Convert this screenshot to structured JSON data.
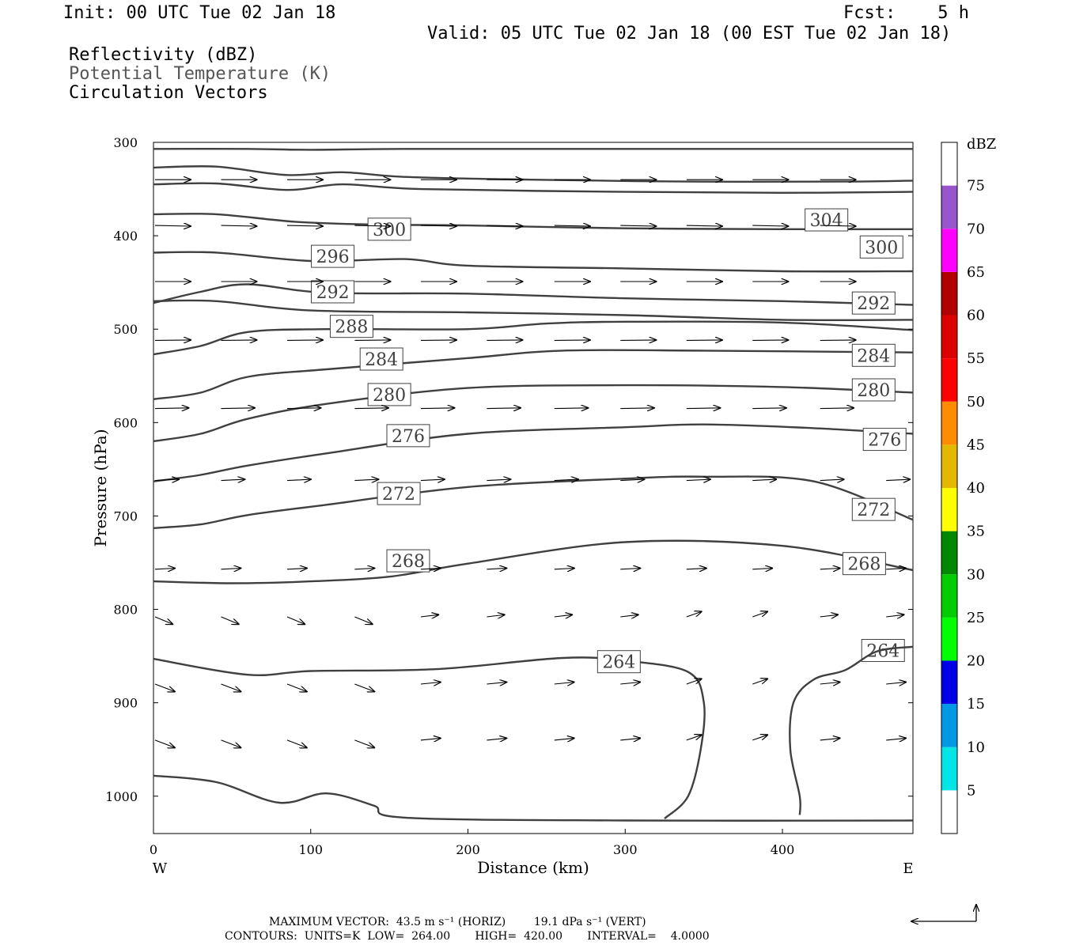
{
  "header": {
    "init": "Init: 00 UTC Tue 02 Jan 18",
    "fcst": "Fcst:    5 h",
    "valid": "Valid: 05 UTC Tue 02 Jan 18 (00 EST Tue 02 Jan 18)",
    "fields": [
      "Reflectivity (dBZ)",
      "Potential Temperature (K)",
      "Circulation Vectors"
    ]
  },
  "footer": {
    "max_vector": "MAXIMUM VECTOR:  43.5 m s⁻¹ (HORIZ)        19.1 dPa s⁻¹ (VERT)",
    "contours": "CONTOURS:  UNITS=K  LOW=  264.00       HIGH=  420.00       INTERVAL=    4.0000"
  },
  "chart_data": {
    "type": "cross-section",
    "xlabel": "Distance (km)",
    "ylabel": "Pressure (hPa)",
    "xlim": [
      0,
      483
    ],
    "ylim": [
      1040,
      300
    ],
    "x_ticks": [
      0,
      100,
      200,
      300,
      400
    ],
    "y_ticks": [
      300,
      400,
      500,
      600,
      700,
      800,
      900,
      1000
    ],
    "x_end_labels": {
      "left": "W",
      "right": "E"
    },
    "colorbar": {
      "title": "dBZ",
      "levels": [
        5,
        10,
        15,
        20,
        25,
        30,
        35,
        40,
        45,
        50,
        55,
        60,
        65,
        70,
        75
      ],
      "colors": [
        "#ffffff",
        "#00e5e5",
        "#0099e5",
        "#0000e6",
        "#00ff00",
        "#00cc00",
        "#008800",
        "#ffff00",
        "#e5b800",
        "#ff8c00",
        "#ff0000",
        "#dd0000",
        "#b00000",
        "#ff00ff",
        "#9955cc",
        "#ffffff"
      ]
    },
    "theta_contours": [
      {
        "label": "",
        "points": [
          [
            0,
            307
          ],
          [
            60,
            307
          ],
          [
            100,
            308
          ],
          [
            160,
            307
          ],
          [
            300,
            307
          ],
          [
            483,
            307
          ]
        ]
      },
      {
        "label": "",
        "points": [
          [
            0,
            327
          ],
          [
            40,
            326
          ],
          [
            85,
            335
          ],
          [
            120,
            332
          ],
          [
            160,
            337
          ],
          [
            240,
            340
          ],
          [
            340,
            342
          ],
          [
            440,
            342
          ],
          [
            483,
            341
          ]
        ]
      },
      {
        "label": "",
        "points": [
          [
            0,
            345
          ],
          [
            40,
            344
          ],
          [
            85,
            351
          ],
          [
            120,
            345
          ],
          [
            170,
            350
          ],
          [
            300,
            353
          ],
          [
            400,
            354
          ],
          [
            483,
            353
          ]
        ]
      },
      {
        "label": "304",
        "label_at": [
          428,
          383
        ],
        "points": [
          [
            0,
            377
          ],
          [
            40,
            377
          ],
          [
            90,
            385
          ],
          [
            140,
            388
          ],
          [
            200,
            389
          ],
          [
            300,
            392
          ],
          [
            400,
            393
          ],
          [
            483,
            393
          ]
        ]
      },
      {
        "label": "300",
        "label_at": [
          150,
          393
        ],
        "label2": "300",
        "label2_at": [
          463,
          412
        ],
        "points": [
          [
            0,
            418
          ],
          [
            40,
            418
          ],
          [
            100,
            427
          ],
          [
            160,
            425
          ],
          [
            200,
            432
          ],
          [
            300,
            435
          ],
          [
            400,
            438
          ],
          [
            483,
            438
          ]
        ]
      },
      {
        "label": "296",
        "label_at": [
          114,
          422
        ],
        "points": [
          [
            0,
            470
          ],
          [
            40,
            470
          ],
          [
            100,
            480
          ],
          [
            200,
            482
          ],
          [
            300,
            485
          ],
          [
            400,
            490
          ],
          [
            483,
            490
          ]
        ]
      },
      {
        "label": "292",
        "label_at": [
          114,
          460
        ],
        "label2": "292",
        "label2_at": [
          458,
          472
        ],
        "points": [
          [
            0,
            472
          ],
          [
            30,
            460
          ],
          [
            60,
            452
          ],
          [
            110,
            461
          ],
          [
            200,
            462
          ],
          [
            300,
            467
          ],
          [
            400,
            470
          ],
          [
            483,
            474
          ]
        ]
      },
      {
        "label": "288",
        "label_at": [
          126,
          497
        ],
        "points": [
          [
            0,
            527
          ],
          [
            30,
            518
          ],
          [
            60,
            503
          ],
          [
            110,
            500
          ],
          [
            200,
            500
          ],
          [
            250,
            494
          ],
          [
            300,
            492
          ],
          [
            400,
            493
          ],
          [
            483,
            501
          ]
        ]
      },
      {
        "label": "284",
        "label_at": [
          145,
          532
        ],
        "label2": "284",
        "label2_at": [
          458,
          528
        ],
        "points": [
          [
            0,
            575
          ],
          [
            30,
            568
          ],
          [
            60,
            551
          ],
          [
            110,
            543
          ],
          [
            200,
            531
          ],
          [
            260,
            523
          ],
          [
            350,
            523
          ],
          [
            483,
            525
          ]
        ]
      },
      {
        "label": "280",
        "label_at": [
          150,
          570
        ],
        "label2": "280",
        "label2_at": [
          458,
          565
        ],
        "points": [
          [
            0,
            620
          ],
          [
            30,
            612
          ],
          [
            60,
            596
          ],
          [
            110,
            580
          ],
          [
            200,
            563
          ],
          [
            300,
            560
          ],
          [
            400,
            562
          ],
          [
            483,
            568
          ]
        ]
      },
      {
        "label": "276",
        "label_at": [
          162,
          614
        ],
        "label2": "276",
        "label2_at": [
          465,
          618
        ],
        "points": [
          [
            0,
            663
          ],
          [
            30,
            656
          ],
          [
            60,
            646
          ],
          [
            110,
            633
          ],
          [
            200,
            612
          ],
          [
            300,
            605
          ],
          [
            350,
            602
          ],
          [
            420,
            606
          ],
          [
            483,
            612
          ]
        ]
      },
      {
        "label": "272",
        "label_at": [
          156,
          676
        ],
        "label2": "272",
        "label2_at": [
          458,
          693
        ],
        "points": [
          [
            0,
            713
          ],
          [
            30,
            709
          ],
          [
            60,
            699
          ],
          [
            110,
            688
          ],
          [
            200,
            669
          ],
          [
            300,
            660
          ],
          [
            350,
            658
          ],
          [
            420,
            663
          ],
          [
            483,
            704
          ]
        ]
      },
      {
        "label": "268",
        "label_at": [
          162,
          748
        ],
        "label2": "268",
        "label2_at": [
          452,
          751
        ],
        "points": [
          [
            0,
            770
          ],
          [
            50,
            772
          ],
          [
            100,
            770
          ],
          [
            150,
            765
          ],
          [
            200,
            751
          ],
          [
            300,
            728
          ],
          [
            400,
            732
          ],
          [
            483,
            758
          ]
        ]
      },
      {
        "label": "264",
        "label_at": [
          296,
          856
        ],
        "label2": "264",
        "label2_at": [
          464,
          844
        ],
        "points": [
          [
            0,
            853
          ],
          [
            60,
            870
          ],
          [
            100,
            866
          ],
          [
            180,
            864
          ],
          [
            260,
            852
          ],
          [
            300,
            855
          ],
          [
            340,
            867
          ],
          [
            350,
            900
          ],
          [
            348,
            950
          ],
          [
            340,
            1000
          ],
          [
            325,
            1024
          ]
        ]
      },
      {
        "label": "",
        "points": [
          [
            411,
            1020
          ],
          [
            411,
            1000
          ],
          [
            405,
            950
          ],
          [
            407,
            900
          ],
          [
            420,
            875
          ],
          [
            440,
            865
          ],
          [
            460,
            845
          ],
          [
            483,
            840
          ]
        ]
      },
      {
        "label": "",
        "points": [
          [
            0,
            978
          ],
          [
            40,
            985
          ],
          [
            80,
            1007
          ],
          [
            110,
            997
          ],
          [
            140,
            1010
          ],
          [
            160,
            1023
          ],
          [
            300,
            1026
          ],
          [
            483,
            1026
          ]
        ]
      }
    ],
    "vector_rows": [
      {
        "p": 340,
        "u": 0.9,
        "v": 0.0
      },
      {
        "p": 389,
        "u": 0.9,
        "v": -0.02
      },
      {
        "p": 449,
        "u": 0.9,
        "v": 0.0
      },
      {
        "p": 512,
        "u": 0.9,
        "v": 0.01
      },
      {
        "p": 585,
        "u": 0.85,
        "v": 0.02
      },
      {
        "p": 662,
        "u": 0.6,
        "v": 0.05
      },
      {
        "p": 757,
        "u": 0.5,
        "v": 0.05
      },
      {
        "p": 808,
        "u": 0.45,
        "v": 0.12
      },
      {
        "p": 880,
        "u": 0.5,
        "v": 0.1
      },
      {
        "p": 940,
        "u": 0.5,
        "v": 0.1
      }
    ]
  }
}
